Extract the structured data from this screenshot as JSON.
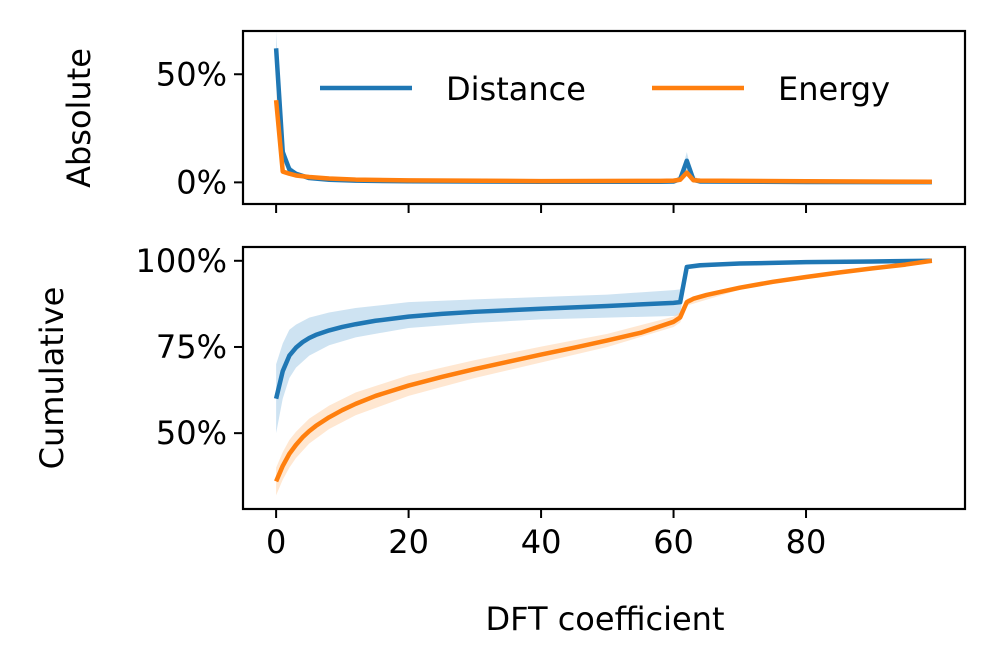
{
  "chart_data": [
    {
      "type": "line",
      "panel": "top",
      "ylabel": "Absolute",
      "xlabel": "",
      "xlim": [
        -5,
        104
      ],
      "ylim": [
        -10,
        70
      ],
      "xticks": [
        0,
        20,
        40,
        60,
        80
      ],
      "show_xtick_labels": false,
      "yticks": [
        0,
        50
      ],
      "ytick_labels": [
        "0%",
        "50%"
      ],
      "legend": {
        "placement": "upper-right",
        "ncol": 2
      },
      "series": [
        {
          "name": "Distance",
          "color": "#1f77b4",
          "band_color": "#9ec8e6",
          "points": [
            [
              0,
              62
            ],
            [
              1,
              14
            ],
            [
              2,
              6
            ],
            [
              3,
              4
            ],
            [
              5,
              2
            ],
            [
              8,
              1.2
            ],
            [
              12,
              0.8
            ],
            [
              20,
              0.5
            ],
            [
              40,
              0.3
            ],
            [
              58,
              0.3
            ],
            [
              60,
              0.4
            ],
            [
              61,
              1.5
            ],
            [
              62,
              10
            ],
            [
              63,
              1.2
            ],
            [
              64,
              0.4
            ],
            [
              80,
              0.2
            ],
            [
              99,
              0.1
            ]
          ],
          "band": [
            [
              0,
              54,
              70
            ],
            [
              1,
              10,
              18
            ],
            [
              2,
              4,
              8
            ],
            [
              3,
              3,
              5
            ],
            [
              5,
              1.5,
              2.5
            ],
            [
              12,
              0.5,
              1.1
            ],
            [
              40,
              0.1,
              0.5
            ],
            [
              60,
              0.2,
              0.6
            ],
            [
              61,
              0.8,
              2.5
            ],
            [
              62,
              5,
              14
            ],
            [
              63,
              0.6,
              2
            ],
            [
              64,
              0.2,
              0.6
            ],
            [
              99,
              0,
              0.2
            ]
          ]
        },
        {
          "name": "Energy",
          "color": "#ff7f0e",
          "band_color": "#ffcfa3",
          "points": [
            [
              0,
              38
            ],
            [
              1,
              5
            ],
            [
              2,
              4
            ],
            [
              3,
              3.2
            ],
            [
              5,
              2.5
            ],
            [
              8,
              1.8
            ],
            [
              12,
              1.3
            ],
            [
              20,
              0.9
            ],
            [
              40,
              0.6
            ],
            [
              58,
              0.7
            ],
            [
              60,
              0.8
            ],
            [
              61,
              1.2
            ],
            [
              62,
              4.5
            ],
            [
              63,
              1
            ],
            [
              64,
              0.8
            ],
            [
              80,
              0.5
            ],
            [
              99,
              0.3
            ]
          ],
          "band": [
            [
              0,
              34,
              42
            ],
            [
              1,
              4,
              6
            ],
            [
              3,
              2.7,
              3.7
            ],
            [
              12,
              1,
              1.6
            ],
            [
              40,
              0.4,
              0.8
            ],
            [
              60,
              0.6,
              1
            ],
            [
              62,
              3,
              6
            ],
            [
              64,
              0.6,
              1
            ],
            [
              99,
              0.1,
              0.5
            ]
          ]
        }
      ]
    },
    {
      "type": "line",
      "panel": "bottom",
      "ylabel": "Cumulative",
      "xlabel": "DFT coefficient",
      "xlim": [
        -5,
        104
      ],
      "ylim": [
        28,
        104
      ],
      "xticks": [
        0,
        20,
        40,
        60,
        80
      ],
      "xtick_labels": [
        "0",
        "20",
        "40",
        "60",
        "80"
      ],
      "yticks": [
        50,
        75,
        100
      ],
      "ytick_labels": [
        "50%",
        "75%",
        "100%"
      ],
      "series": [
        {
          "name": "Distance",
          "color": "#1f77b4",
          "band_color": "#9ec8e6",
          "points": [
            [
              0,
              60
            ],
            [
              1,
              68
            ],
            [
              2,
              72.5
            ],
            [
              3,
              74.8
            ],
            [
              4,
              76.4
            ],
            [
              5,
              77.6
            ],
            [
              6,
              78.5
            ],
            [
              8,
              79.8
            ],
            [
              10,
              80.8
            ],
            [
              12,
              81.6
            ],
            [
              15,
              82.6
            ],
            [
              20,
              83.8
            ],
            [
              25,
              84.6
            ],
            [
              30,
              85.2
            ],
            [
              40,
              86.1
            ],
            [
              50,
              86.9
            ],
            [
              60,
              87.8
            ],
            [
              61,
              88
            ],
            [
              62,
              98.2
            ],
            [
              64,
              98.7
            ],
            [
              70,
              99.2
            ],
            [
              80,
              99.6
            ],
            [
              90,
              99.8
            ],
            [
              99,
              100
            ]
          ],
          "band": [
            [
              0,
              50,
              70
            ],
            [
              1,
              60,
              76
            ],
            [
              2,
              66,
              80
            ],
            [
              3,
              69,
              81.5
            ],
            [
              5,
              72.5,
              83.5
            ],
            [
              8,
              75.5,
              85
            ],
            [
              12,
              77.8,
              86.3
            ],
            [
              20,
              80.5,
              88
            ],
            [
              30,
              82,
              88.8
            ],
            [
              40,
              83,
              89.5
            ],
            [
              50,
              83.5,
              90.2
            ],
            [
              60,
              84,
              91.5
            ],
            [
              61,
              84.2,
              91.7
            ],
            [
              62,
              97.6,
              98.8
            ],
            [
              70,
              98.9,
              99.5
            ],
            [
              99,
              99.9,
              100
            ]
          ]
        },
        {
          "name": "Energy",
          "color": "#ff7f0e",
          "band_color": "#ffcfa3",
          "points": [
            [
              0,
              36
            ],
            [
              1,
              40.5
            ],
            [
              2,
              44
            ],
            [
              3,
              46.6
            ],
            [
              4,
              48.8
            ],
            [
              5,
              50.6
            ],
            [
              6,
              52.1
            ],
            [
              8,
              54.6
            ],
            [
              10,
              56.7
            ],
            [
              12,
              58.5
            ],
            [
              15,
              60.8
            ],
            [
              20,
              63.8
            ],
            [
              25,
              66.3
            ],
            [
              30,
              68.6
            ],
            [
              35,
              70.7
            ],
            [
              40,
              72.8
            ],
            [
              45,
              74.8
            ],
            [
              50,
              76.9
            ],
            [
              55,
              79.1
            ],
            [
              60,
              82.3
            ],
            [
              61,
              83.6
            ],
            [
              62,
              88
            ],
            [
              63,
              89
            ],
            [
              65,
              90.1
            ],
            [
              70,
              92.2
            ],
            [
              75,
              93.9
            ],
            [
              80,
              95.3
            ],
            [
              85,
              96.6
            ],
            [
              90,
              97.8
            ],
            [
              95,
              98.9
            ],
            [
              99,
              100
            ]
          ],
          "band": [
            [
              0,
              32,
              40
            ],
            [
              1,
              36.5,
              44.5
            ],
            [
              2,
              40,
              48
            ],
            [
              3,
              42.8,
              50.4
            ],
            [
              5,
              47,
              54.2
            ],
            [
              8,
              51.2,
              58
            ],
            [
              12,
              55.2,
              61.8
            ],
            [
              20,
              60.8,
              66.8
            ],
            [
              30,
              66,
              71.2
            ],
            [
              40,
              70.5,
              75.1
            ],
            [
              50,
              75,
              78.8
            ],
            [
              60,
              80.8,
              83.8
            ],
            [
              61,
              82.1,
              85.1
            ],
            [
              62,
              87,
              89
            ],
            [
              70,
              91.6,
              92.8
            ],
            [
              80,
              95,
              95.6
            ],
            [
              99,
              99.9,
              100
            ]
          ]
        }
      ]
    }
  ]
}
